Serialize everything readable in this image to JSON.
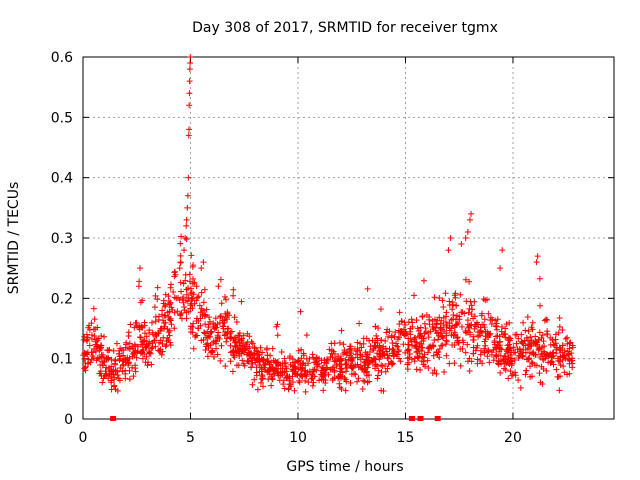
{
  "chart_data": {
    "type": "scatter",
    "title": "Day 308 of 2017, SRMTID for receiver tgmx",
    "xlabel": "GPS time / hours",
    "ylabel": "SRMTID / TECUs",
    "xlim": [
      0,
      24.7
    ],
    "ylim": [
      0,
      0.6
    ],
    "xticks": [
      "0",
      "5",
      "10",
      "15",
      "20"
    ],
    "yticks": [
      "0",
      "0.1",
      "0.2",
      "0.3",
      "0.4",
      "0.5",
      "0.6"
    ],
    "grid": true,
    "marker": "+",
    "series": [
      {
        "name": "SRMTID",
        "color": "#ff0000",
        "profile": [
          [
            0.0,
            0.11,
            0.03
          ],
          [
            0.5,
            0.13,
            0.03
          ],
          [
            1.0,
            0.09,
            0.025
          ],
          [
            1.5,
            0.08,
            0.025
          ],
          [
            2.0,
            0.1,
            0.03
          ],
          [
            2.5,
            0.13,
            0.035
          ],
          [
            3.0,
            0.12,
            0.03
          ],
          [
            3.5,
            0.15,
            0.035
          ],
          [
            4.0,
            0.17,
            0.04
          ],
          [
            4.5,
            0.21,
            0.05
          ],
          [
            5.0,
            0.2,
            0.05
          ],
          [
            5.5,
            0.17,
            0.04
          ],
          [
            6.0,
            0.14,
            0.035
          ],
          [
            6.5,
            0.15,
            0.035
          ],
          [
            7.0,
            0.12,
            0.03
          ],
          [
            8.0,
            0.1,
            0.025
          ],
          [
            9.0,
            0.08,
            0.02
          ],
          [
            10.0,
            0.08,
            0.02
          ],
          [
            11.0,
            0.08,
            0.02
          ],
          [
            12.0,
            0.09,
            0.025
          ],
          [
            13.0,
            0.1,
            0.03
          ],
          [
            14.0,
            0.11,
            0.03
          ],
          [
            15.0,
            0.13,
            0.035
          ],
          [
            16.0,
            0.12,
            0.035
          ],
          [
            17.0,
            0.15,
            0.04
          ],
          [
            18.0,
            0.16,
            0.045
          ],
          [
            19.0,
            0.13,
            0.035
          ],
          [
            20.0,
            0.11,
            0.03
          ],
          [
            21.0,
            0.12,
            0.035
          ],
          [
            22.0,
            0.11,
            0.03
          ],
          [
            22.8,
            0.1,
            0.03
          ]
        ],
        "highlights": [
          [
            4.5,
            0.25
          ],
          [
            4.55,
            0.26
          ],
          [
            4.7,
            0.28
          ],
          [
            4.75,
            0.3
          ],
          [
            4.8,
            0.32
          ],
          [
            4.82,
            0.33
          ],
          [
            4.85,
            0.35
          ],
          [
            4.88,
            0.37
          ],
          [
            4.9,
            0.4
          ],
          [
            4.92,
            0.47
          ],
          [
            4.93,
            0.48
          ],
          [
            4.94,
            0.52
          ],
          [
            4.95,
            0.54
          ],
          [
            4.96,
            0.56
          ],
          [
            4.97,
            0.58
          ],
          [
            4.98,
            0.59
          ],
          [
            4.99,
            0.6
          ],
          [
            2.6,
            0.22
          ],
          [
            2.65,
            0.25
          ],
          [
            5.5,
            0.25
          ],
          [
            5.6,
            0.26
          ],
          [
            6.3,
            0.22
          ],
          [
            17.0,
            0.28
          ],
          [
            17.1,
            0.3
          ],
          [
            17.6,
            0.29
          ],
          [
            17.8,
            0.3
          ],
          [
            17.9,
            0.31
          ],
          [
            18.0,
            0.33
          ],
          [
            18.05,
            0.34
          ],
          [
            19.4,
            0.25
          ],
          [
            19.5,
            0.28
          ],
          [
            21.1,
            0.26
          ],
          [
            21.15,
            0.27
          ]
        ]
      }
    ],
    "baseline_markers_x": [
      1.4,
      15.3,
      15.7,
      16.5
    ],
    "n_points": 1700
  }
}
